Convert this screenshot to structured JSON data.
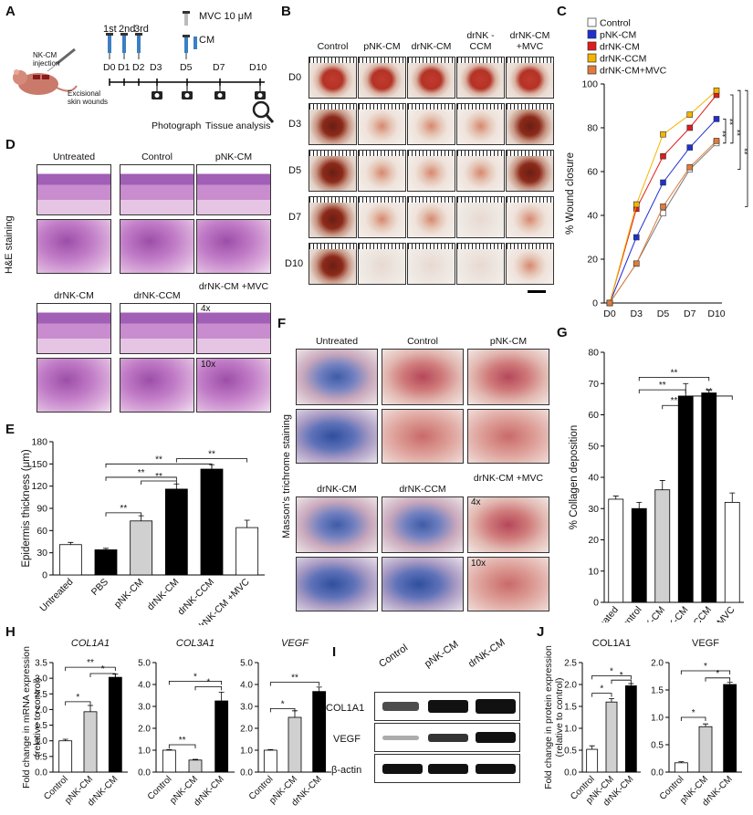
{
  "panels": {
    "A": "A",
    "B": "B",
    "C": "C",
    "D": "D",
    "E": "E",
    "F": "F",
    "G": "G",
    "H": "H",
    "I": "I",
    "J": "J"
  },
  "panelA": {
    "injections": [
      "1st",
      "2nd",
      "3rd"
    ],
    "mvc": "MVC 10 μM",
    "cm": "CM",
    "days": [
      "D0",
      "D1",
      "D2",
      "D3",
      "D5",
      "D7",
      "D10"
    ],
    "nk_injection": "NK-CM injection",
    "excisional": "Excisional skin wounds",
    "photograph": "Photograph",
    "tissue": "Tissue analysis"
  },
  "panelB": {
    "columns": [
      "Control",
      "pNK-CM",
      "drNK-CM",
      "drNK -CCM",
      "drNK-CM +MVC"
    ],
    "rows": [
      "D0",
      "D3",
      "D5",
      "D7",
      "D10"
    ]
  },
  "panelD": {
    "he_label": "H&E staining",
    "top": [
      "Untreated",
      "Control",
      "pNK-CM"
    ],
    "bottom": [
      "drNK-CM",
      "drNK-CCM",
      "drNK-CM +MVC"
    ],
    "mag4": "4x",
    "mag10": "10x"
  },
  "panelF": {
    "mt_label": "Masson's trichrome staining",
    "top": [
      "Untreated",
      "Control",
      "pNK-CM"
    ],
    "bottom": [
      "drNK-CM",
      "drNK-CCM",
      "drNK-CM +MVC"
    ],
    "mag4": "4x",
    "mag10": "10x"
  },
  "panelI": {
    "lanes": [
      "Control",
      "pNK-CM",
      "drNK-CM"
    ],
    "proteins": [
      "COL1A1",
      "VEGF",
      "β-actin"
    ]
  },
  "chart_data": [
    {
      "id": "C",
      "type": "line",
      "ylabel": "% Wound closure",
      "x": [
        "D0",
        "D3",
        "D5",
        "D7",
        "D10"
      ],
      "ylim": [
        0,
        100
      ],
      "yticks": [
        0,
        20,
        40,
        60,
        80,
        100
      ],
      "series": [
        {
          "name": "Control",
          "color": "#ffffff",
          "values": [
            0,
            18,
            41,
            61,
            73
          ]
        },
        {
          "name": "pNK-CM",
          "color": "#1f2fd0",
          "values": [
            0,
            30,
            55,
            71,
            84
          ]
        },
        {
          "name": "drNK-CM",
          "color": "#e01b1b",
          "values": [
            0,
            43,
            67,
            80,
            95
          ]
        },
        {
          "name": "drNK-CCM",
          "color": "#f4b400",
          "values": [
            0,
            45,
            77,
            86,
            97
          ]
        },
        {
          "name": "drNK-CM+MVC",
          "color": "#e07b3c",
          "values": [
            0,
            18,
            44,
            62,
            74
          ]
        }
      ],
      "significance": [
        "**",
        "**",
        "**",
        "**"
      ]
    },
    {
      "id": "E",
      "type": "bar",
      "ylabel": "Epidermis thickness (μm)",
      "categories": [
        "Untreated",
        "PBS",
        "pNK-CM",
        "drNK-CM",
        "drNK-CCM",
        "drNK-CM +MVC"
      ],
      "values": [
        41,
        34,
        73,
        116,
        143,
        64
      ],
      "errors": [
        3,
        2,
        7,
        7,
        6,
        10
      ],
      "colors": [
        "#ffffff",
        "#000000",
        "#d0d0d0",
        "#000000",
        "#000000",
        "#ffffff"
      ],
      "ylim": [
        0,
        180
      ],
      "yticks": [
        0,
        30,
        60,
        90,
        120,
        150,
        180
      ],
      "significance": [
        "**",
        "**",
        "**",
        "**",
        "**"
      ]
    },
    {
      "id": "G",
      "type": "bar",
      "ylabel": "% Collagen deposition",
      "categories": [
        "Untreated",
        "Control",
        "pNK-CM",
        "drNK-CM",
        "drNK-CCM",
        "drNK-CM +MVC"
      ],
      "values": [
        33,
        30,
        36,
        66,
        67,
        32
      ],
      "errors": [
        1,
        2,
        3,
        4,
        1,
        3
      ],
      "colors": [
        "#ffffff",
        "#000000",
        "#d0d0d0",
        "#000000",
        "#000000",
        "#ffffff"
      ],
      "ylim": [
        0,
        80
      ],
      "yticks": [
        0,
        10,
        20,
        30,
        40,
        50,
        60,
        70,
        80
      ],
      "significance": [
        "**",
        "**",
        "**",
        "**"
      ]
    },
    {
      "id": "H1",
      "type": "bar",
      "title": "COL1A1",
      "ylabel": "Fold change in mRNA expression (relative to control)",
      "categories": [
        "Control",
        "pNK-CM",
        "drNK-CM"
      ],
      "values": [
        1.0,
        1.93,
        3.03
      ],
      "errors": [
        0.05,
        0.2,
        0.1
      ],
      "colors": [
        "#ffffff",
        "#d0d0d0",
        "#000000"
      ],
      "ylim": [
        0,
        3.5
      ],
      "yticks": [
        0,
        0.5,
        1.0,
        1.5,
        2.0,
        2.5,
        3.0,
        3.5
      ],
      "significance": [
        "*",
        "**",
        "*"
      ]
    },
    {
      "id": "H2",
      "type": "bar",
      "title": "COL3A1",
      "categories": [
        "Control",
        "pNK-CM",
        "drNK-CM"
      ],
      "values": [
        1.0,
        0.55,
        3.25
      ],
      "errors": [
        0.03,
        0.03,
        0.4
      ],
      "colors": [
        "#ffffff",
        "#d0d0d0",
        "#000000"
      ],
      "ylim": [
        0,
        5
      ],
      "yticks": [
        0,
        1.0,
        2.0,
        3.0,
        4.0,
        5.0
      ],
      "significance": [
        "**",
        "*",
        "*"
      ]
    },
    {
      "id": "H3",
      "type": "bar",
      "title": "VEGF",
      "categories": [
        "Control",
        "pNK-CM",
        "drNK-CM"
      ],
      "values": [
        1.0,
        2.5,
        3.68
      ],
      "errors": [
        0.03,
        0.3,
        0.2
      ],
      "colors": [
        "#ffffff",
        "#d0d0d0",
        "#000000"
      ],
      "ylim": [
        0,
        5
      ],
      "yticks": [
        0,
        1.0,
        2.0,
        3.0,
        4.0,
        5.0
      ],
      "significance": [
        "*",
        "**"
      ]
    },
    {
      "id": "J1",
      "type": "bar",
      "title": "COL1A1",
      "ylabel": "Fold change in protein expression (relative to control)",
      "categories": [
        "Control",
        "pNK-CM",
        "drNK-CM"
      ],
      "values": [
        0.52,
        1.6,
        1.97
      ],
      "errors": [
        0.08,
        0.08,
        0.05
      ],
      "colors": [
        "#ffffff",
        "#d0d0d0",
        "#000000"
      ],
      "ylim": [
        0,
        2.5
      ],
      "yticks": [
        0,
        0.5,
        1.0,
        1.5,
        2.0,
        2.5
      ],
      "significance": [
        "*",
        "*",
        "*"
      ]
    },
    {
      "id": "J2",
      "type": "bar",
      "title": "VEGF",
      "categories": [
        "Control",
        "pNK-CM",
        "drNK-CM"
      ],
      "values": [
        0.17,
        0.83,
        1.6
      ],
      "errors": [
        0.02,
        0.05,
        0.04
      ],
      "colors": [
        "#ffffff",
        "#d0d0d0",
        "#000000"
      ],
      "ylim": [
        0,
        2.0
      ],
      "yticks": [
        0,
        0.5,
        1.0,
        1.5,
        2.0
      ],
      "significance": [
        "*",
        "*",
        "*"
      ]
    }
  ]
}
